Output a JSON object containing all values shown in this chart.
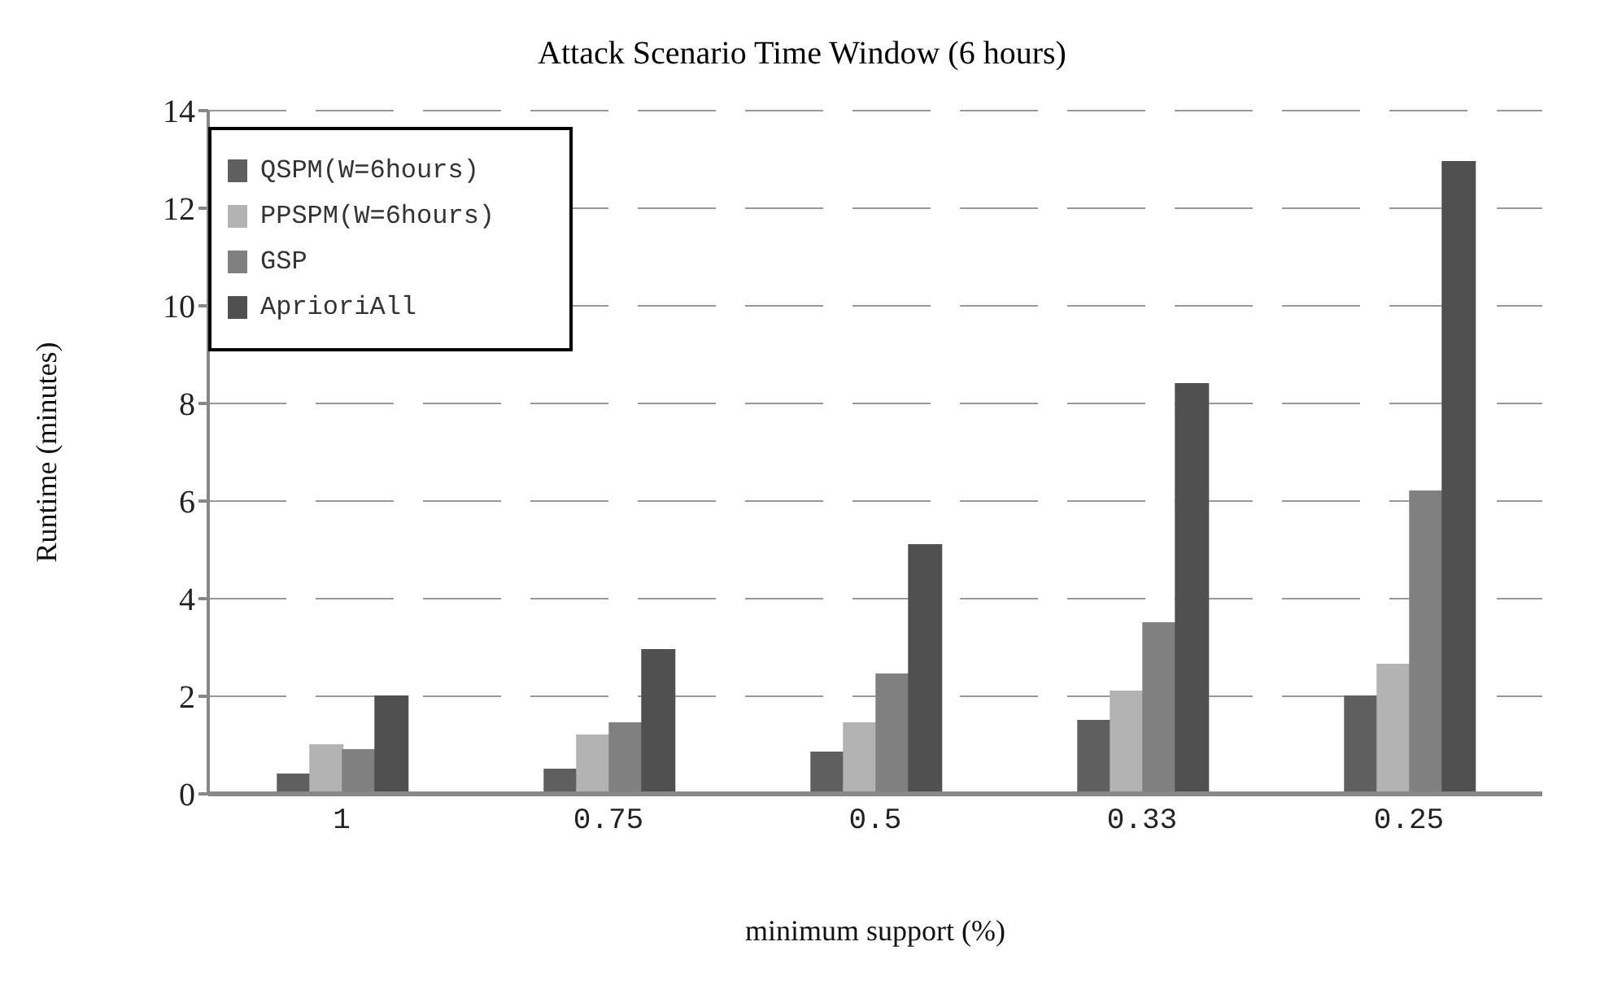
{
  "chart_data": {
    "type": "bar",
    "title": "Attack Scenario Time Window (6 hours)",
    "xlabel": "minimum support (%)",
    "ylabel": "Runtime (minutes)",
    "categories": [
      "1",
      "0.75",
      "0.5",
      "0.33",
      "0.25"
    ],
    "series": [
      {
        "name": "QSPM(W=6hours)",
        "color": "#5f5f5f",
        "values": [
          0.4,
          0.5,
          0.85,
          1.5,
          2.0
        ]
      },
      {
        "name": "PPSPM(W=6hours)",
        "color": "#b3b3b3",
        "values": [
          1.0,
          1.2,
          1.45,
          2.1,
          2.65
        ]
      },
      {
        "name": "GSP",
        "color": "#808080",
        "values": [
          0.9,
          1.45,
          2.45,
          3.5,
          6.2
        ]
      },
      {
        "name": "AprioriAll",
        "color": "#505050",
        "values": [
          2.0,
          2.95,
          5.1,
          8.4,
          12.95
        ]
      }
    ],
    "ylim": [
      0,
      14
    ],
    "yticks": [
      0,
      2,
      4,
      6,
      8,
      10,
      12,
      14
    ],
    "grid": "y",
    "legend": "top left"
  }
}
